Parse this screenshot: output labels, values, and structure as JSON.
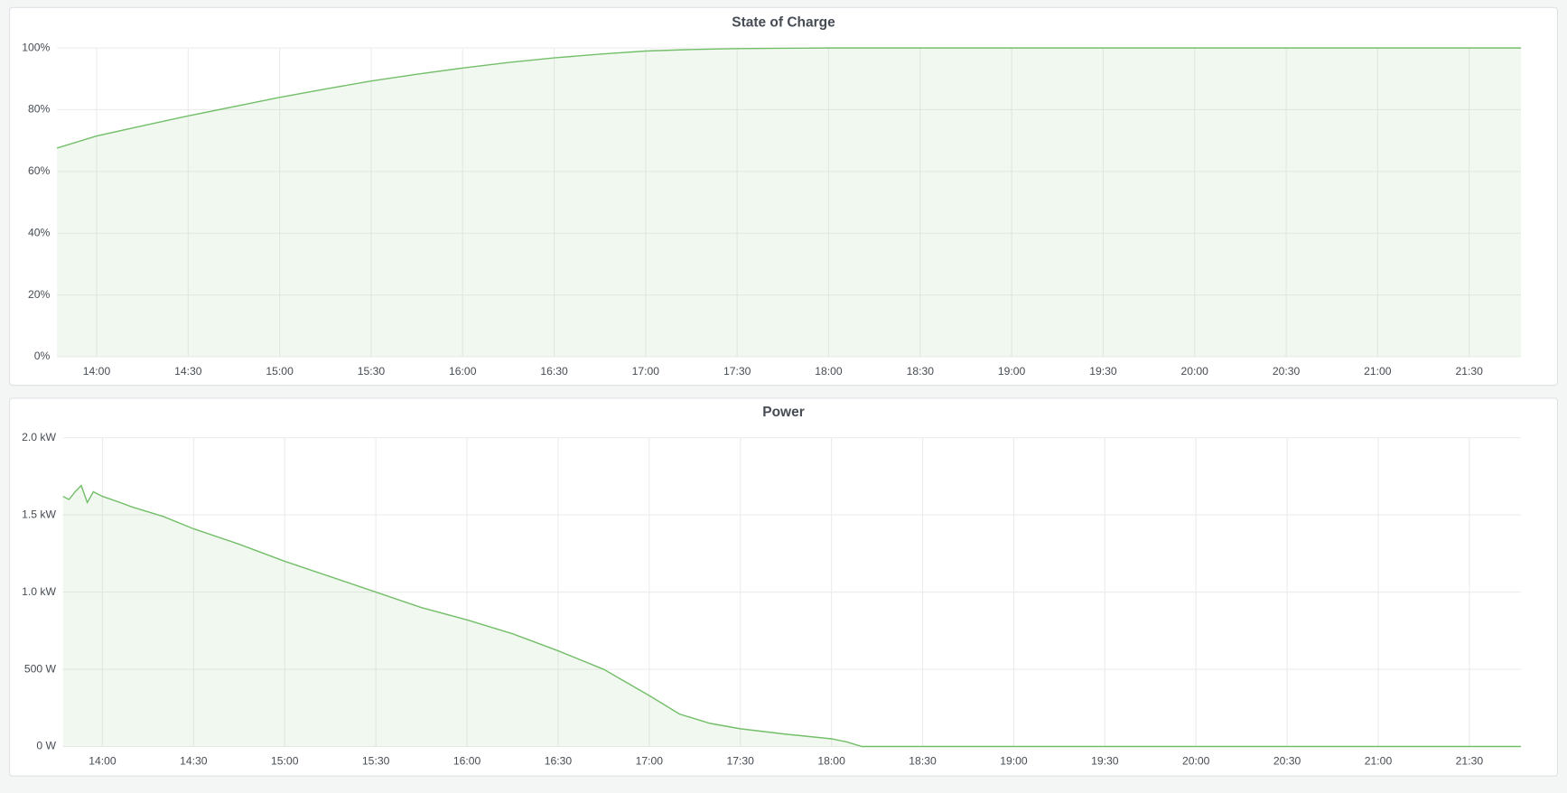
{
  "chart_data": [
    {
      "type": "line",
      "title": "State of Charge",
      "color": "#73bf69",
      "grid": true,
      "x": [
        "13:47",
        "14:00",
        "14:15",
        "14:30",
        "14:45",
        "15:00",
        "15:15",
        "15:30",
        "15:45",
        "16:00",
        "16:15",
        "16:30",
        "16:45",
        "17:00",
        "17:15",
        "17:30",
        "17:45",
        "18:00",
        "18:30",
        "19:00",
        "19:30",
        "20:00",
        "20:30",
        "21:00",
        "21:30",
        "21:47"
      ],
      "values": [
        67.6,
        71.5,
        74.8,
        78,
        81,
        84,
        86.7,
        89.3,
        91.5,
        93.5,
        95.3,
        96.8,
        98,
        99,
        99.5,
        99.8,
        99.9,
        100,
        100,
        100,
        100,
        100,
        100,
        100,
        100,
        100
      ],
      "xlim": [
        "13:47",
        "21:47"
      ],
      "xticks": [
        "14:00",
        "14:30",
        "15:00",
        "15:30",
        "16:00",
        "16:30",
        "17:00",
        "17:30",
        "18:00",
        "18:30",
        "19:00",
        "19:30",
        "20:00",
        "20:30",
        "21:00",
        "21:30"
      ],
      "ylim": [
        0,
        100
      ],
      "yticks": [
        {
          "value": 0,
          "label": "0%"
        },
        {
          "value": 20,
          "label": "20%"
        },
        {
          "value": 40,
          "label": "40%"
        },
        {
          "value": 60,
          "label": "60%"
        },
        {
          "value": 80,
          "label": "80%"
        },
        {
          "value": 100,
          "label": "100%"
        }
      ]
    },
    {
      "type": "line",
      "title": "Power",
      "color": "#73bf69",
      "grid": true,
      "x": [
        "13:47",
        "13:49",
        "13:51",
        "13:53",
        "13:55",
        "13:57",
        "14:00",
        "14:03",
        "14:10",
        "14:20",
        "14:30",
        "14:45",
        "15:00",
        "15:15",
        "15:30",
        "15:45",
        "16:00",
        "16:15",
        "16:30",
        "16:45",
        "17:00",
        "17:10",
        "17:20",
        "17:30",
        "17:45",
        "18:00",
        "18:05",
        "18:10",
        "21:47"
      ],
      "values": [
        1620,
        1600,
        1650,
        1690,
        1580,
        1650,
        1620,
        1600,
        1550,
        1490,
        1410,
        1310,
        1200,
        1100,
        1000,
        900,
        820,
        730,
        620,
        500,
        330,
        210,
        150,
        115,
        80,
        50,
        30,
        0,
        0
      ],
      "xlim": [
        "13:47",
        "21:47"
      ],
      "xticks": [
        "14:00",
        "14:30",
        "15:00",
        "15:30",
        "16:00",
        "16:30",
        "17:00",
        "17:30",
        "18:00",
        "18:30",
        "19:00",
        "19:30",
        "20:00",
        "20:30",
        "21:00",
        "21:30"
      ],
      "ylim": [
        0,
        2000
      ],
      "yticks": [
        {
          "value": 0,
          "label": "0 W"
        },
        {
          "value": 500,
          "label": "500 W"
        },
        {
          "value": 1000,
          "label": "1.0 kW"
        },
        {
          "value": 1500,
          "label": "1.5 kW"
        },
        {
          "value": 2000,
          "label": "2.0 kW"
        }
      ]
    }
  ]
}
